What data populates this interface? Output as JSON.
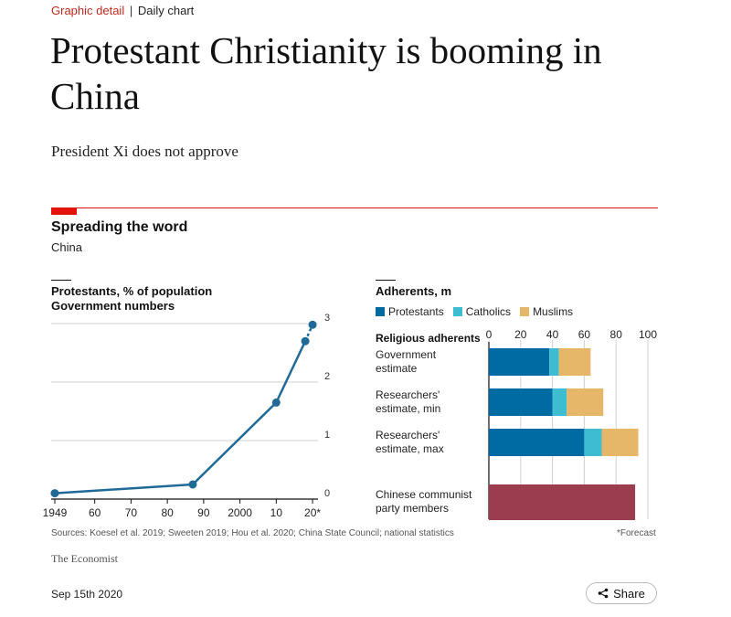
{
  "kicker": {
    "section": "Graphic detail",
    "separator": "|",
    "subsection": "Daily chart"
  },
  "headline": "Protestant Christianity is booming in China",
  "standfirst": "President Xi does not approve",
  "chart_header": {
    "title": "Spreading the word",
    "subtitle": "China"
  },
  "colors": {
    "accent": "#e3120b",
    "line": "#1f6a96",
    "protestants": "#006ba2",
    "catholics": "#3ebcd2",
    "muslims": "#e6b768",
    "party": "#9b3c4f"
  },
  "chart_data": [
    {
      "type": "line",
      "title": "Protestants, % of population",
      "subtitle": "Government numbers",
      "x_tick_labels": [
        "1949",
        "60",
        "70",
        "80",
        "90",
        "2000",
        "10",
        "20*"
      ],
      "x_ticks": [
        1949,
        1960,
        1970,
        1980,
        1990,
        2000,
        2010,
        2020
      ],
      "y_ticks": [
        0,
        1,
        2,
        3
      ],
      "xlim": [
        1948,
        2022
      ],
      "ylim": [
        0,
        3
      ],
      "grid": true,
      "series": [
        {
          "x": [
            1949,
            1987,
            2010,
            2018
          ],
          "y": [
            0.1,
            0.25,
            1.65,
            2.7
          ],
          "forecast": false
        },
        {
          "x": [
            2018,
            2020
          ],
          "y": [
            2.7,
            2.98
          ],
          "forecast": true
        }
      ],
      "markers": {
        "x": [
          1949,
          1987,
          2010,
          2018,
          2020
        ],
        "y": [
          0.1,
          0.25,
          1.65,
          2.7,
          2.98
        ]
      }
    },
    {
      "type": "bar",
      "orientation": "horizontal",
      "stacked": true,
      "title": "Adherents, m",
      "row_header": "Religious adherents",
      "x_ticks": [
        0,
        20,
        40,
        60,
        80,
        100
      ],
      "xlim": [
        0,
        100
      ],
      "grid": true,
      "legend": [
        "Protestants",
        "Catholics",
        "Muslims"
      ],
      "categories": [
        [
          "Government",
          "estimate"
        ],
        [
          "Researchers'",
          "estimate, min"
        ],
        [
          "Researchers'",
          "estimate, max"
        ],
        [
          "Chinese communist",
          "party members"
        ]
      ],
      "series": [
        {
          "name": "Protestants",
          "values": [
            38,
            40,
            60,
            0
          ]
        },
        {
          "name": "Catholics",
          "values": [
            6,
            9,
            11,
            0
          ]
        },
        {
          "name": "Muslims",
          "values": [
            20,
            23,
            23,
            0
          ]
        },
        {
          "name": "",
          "values": [
            0,
            0,
            0,
            92
          ]
        }
      ]
    }
  ],
  "footer": {
    "sources": "Sources: Koesel et al. 2019; Sweeten 2019; Hou et al. 2020; China State Council; national statistics",
    "forecast_note": "*Forecast",
    "brand": "The Economist"
  },
  "meta": {
    "date": "Sep 15th 2020",
    "share_label": "Share",
    "share_icon": "share-icon"
  }
}
